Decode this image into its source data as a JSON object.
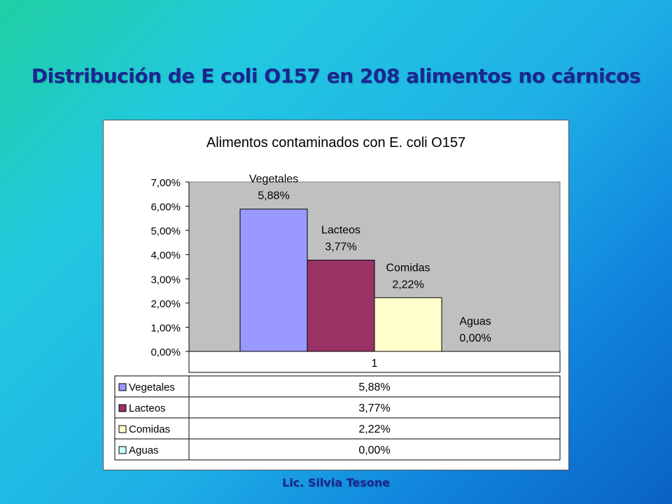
{
  "slide": {
    "title": "Distribución de E coli O157 en 208 alimentos no cárnicos",
    "footer": "Lic. Silvia Tesone"
  },
  "chart_data": {
    "type": "bar",
    "title": "Alimentos contaminados con E. coli O157",
    "categories": [
      "1"
    ],
    "series": [
      {
        "name": "Vegetales",
        "values": [
          5.88
        ],
        "color": "#9999ff",
        "label": "5,88%"
      },
      {
        "name": "Lacteos",
        "values": [
          3.77
        ],
        "color": "#993366",
        "label": "3,77%"
      },
      {
        "name": "Comidas",
        "values": [
          2.22
        ],
        "color": "#ffffcc",
        "label": "2,22%"
      },
      {
        "name": "Aguas",
        "values": [
          0.0
        ],
        "color": "#ccffff",
        "label": "0,00%"
      }
    ],
    "yticks": [
      "0,00%",
      "1,00%",
      "2,00%",
      "3,00%",
      "4,00%",
      "5,00%",
      "6,00%",
      "7,00%"
    ],
    "ylim": [
      0,
      7
    ],
    "plot_background": "#c0c0c0",
    "grid": false,
    "legend": "data-table-below"
  }
}
